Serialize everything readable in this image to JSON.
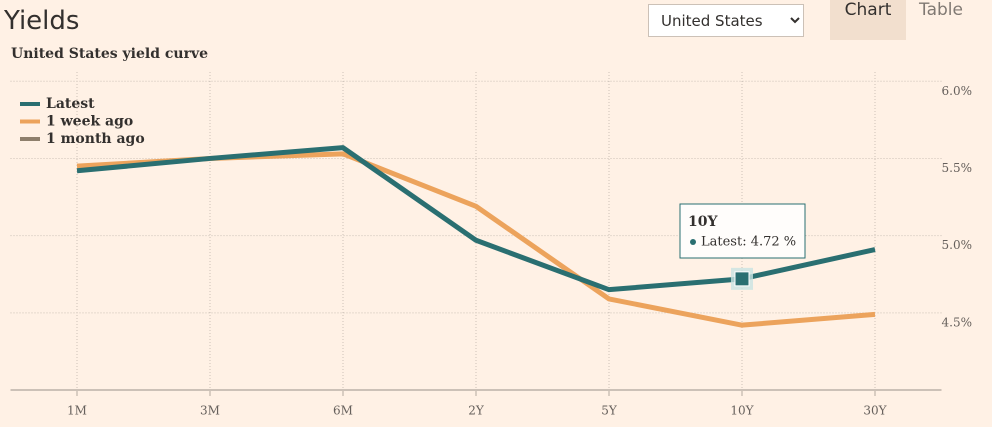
{
  "header": {
    "title": "Yields",
    "country": "United States",
    "tabs": [
      "Chart",
      "Table"
    ]
  },
  "chart_data": {
    "type": "line",
    "subtitle": "United States yield curve",
    "categories": [
      "1M",
      "3M",
      "6M",
      "2Y",
      "5Y",
      "10Y",
      "30Y"
    ],
    "series": [
      {
        "name": "Latest",
        "color": "#2a6f71",
        "values": [
          5.42,
          5.5,
          5.57,
          4.97,
          4.65,
          4.72,
          4.91
        ]
      },
      {
        "name": "1 week ago",
        "color": "#eca35c",
        "values": [
          5.45,
          5.5,
          5.53,
          5.19,
          4.59,
          4.42,
          4.49
        ]
      },
      {
        "name": "1 month ago",
        "color": "#8e7f6c",
        "values": [
          null,
          null,
          null,
          null,
          null,
          null,
          null
        ]
      }
    ],
    "ylim": [
      4.0,
      6.06
    ],
    "yticks": [
      {
        "value": 4.5,
        "label": "4.5%"
      },
      {
        "value": 5.0,
        "label": "5.0%"
      },
      {
        "value": 5.5,
        "label": "5.5%"
      },
      {
        "value": 6.0,
        "label": "6.0%"
      }
    ],
    "grid": true,
    "legend": "top-left",
    "tooltip": {
      "category": "10Y",
      "text": "Latest: 4.72 %",
      "series": 0,
      "index": 5
    }
  }
}
